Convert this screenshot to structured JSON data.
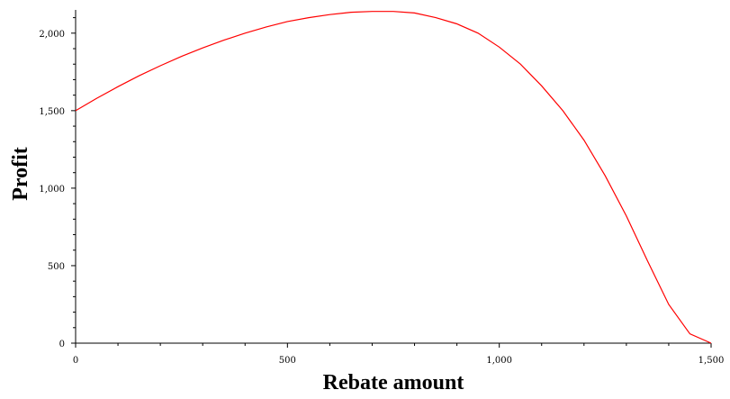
{
  "chart_data": {
    "type": "line",
    "title": "",
    "xlabel": "Rebate amount",
    "ylabel": "Profit",
    "xlim": [
      0,
      1500
    ],
    "ylim": [
      0,
      2150
    ],
    "x_ticks": [
      0,
      500,
      1000,
      1500
    ],
    "x_tick_labels": [
      "0",
      "500",
      "1,000",
      "1,500"
    ],
    "y_ticks": [
      0,
      500,
      1000,
      1500,
      2000
    ],
    "y_tick_labels": [
      "0",
      "500",
      "1,000",
      "1,500",
      "2,000"
    ],
    "grid": false,
    "legend": "none",
    "line_color": "#ff0000",
    "series": [
      {
        "x": [
          0,
          50,
          100,
          150,
          200,
          250,
          300,
          350,
          400,
          450,
          500,
          550,
          600,
          650,
          700,
          750,
          800,
          850,
          900,
          950,
          1000,
          1050,
          1100,
          1150,
          1200,
          1250,
          1300,
          1350,
          1400,
          1450,
          1500
        ],
        "y": [
          1500,
          1580,
          1655,
          1725,
          1790,
          1850,
          1905,
          1955,
          2000,
          2040,
          2075,
          2100,
          2120,
          2135,
          2140,
          2140,
          2130,
          2100,
          2060,
          2000,
          1910,
          1800,
          1660,
          1500,
          1310,
          1080,
          820,
          530,
          250,
          60,
          0
        ]
      }
    ]
  }
}
